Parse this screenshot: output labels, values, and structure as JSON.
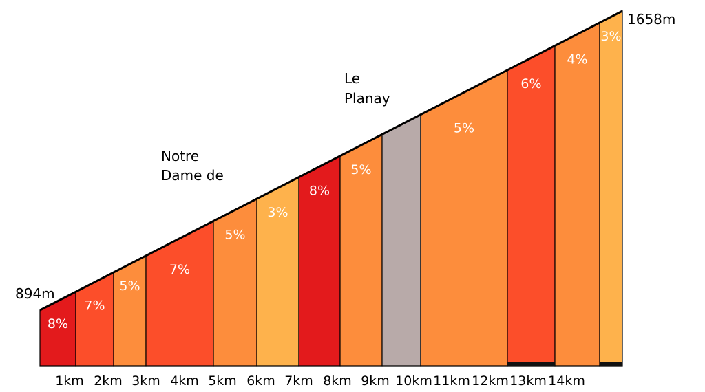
{
  "chart_data": {
    "type": "area",
    "title": "",
    "xlabel": "",
    "ylabel": "",
    "x_tick_labels": [
      "1km",
      "2km",
      "3km",
      "4km",
      "5km",
      "6km",
      "7km",
      "8km",
      "9km",
      "10km",
      "11km",
      "12km",
      "13km",
      "14km"
    ],
    "start_elevation_label": "894m",
    "end_elevation_label": "1658m",
    "start_elevation": 894,
    "end_elevation": 1658,
    "segments": [
      {
        "grade": 8,
        "label": "8%",
        "color": "#e31a1c"
      },
      {
        "grade": 7,
        "label": "7%",
        "color": "#fc4e2a"
      },
      {
        "grade": 5,
        "label": "5%",
        "color": "#fd8d3c"
      },
      {
        "grade": 7,
        "label": "7%",
        "color": "#fc4e2a"
      },
      {
        "grade": 5,
        "label": "5%",
        "color": "#fd8d3c"
      },
      {
        "grade": 3,
        "label": "3%",
        "color": "#feb24c"
      },
      {
        "grade": 8,
        "label": "8%",
        "color": "#e31a1c"
      },
      {
        "grade": 5,
        "label": "5%",
        "color": "#fd8d3c"
      },
      {
        "grade": 0,
        "label": "",
        "color": "#b8aaa9"
      },
      {
        "grade": 5,
        "label": "5%",
        "color": "#fd8d3c"
      },
      {
        "grade": 6,
        "label": "6%",
        "color": "#fc4e2a"
      },
      {
        "grade": 4,
        "label": "4%",
        "color": "#fd8d3c"
      },
      {
        "grade": 3,
        "label": "3%",
        "color": "#feb24c"
      }
    ],
    "places": [
      {
        "lines": [
          "Notre",
          "Dame de"
        ]
      },
      {
        "lines": [
          "Le",
          "Planay"
        ]
      }
    ]
  }
}
